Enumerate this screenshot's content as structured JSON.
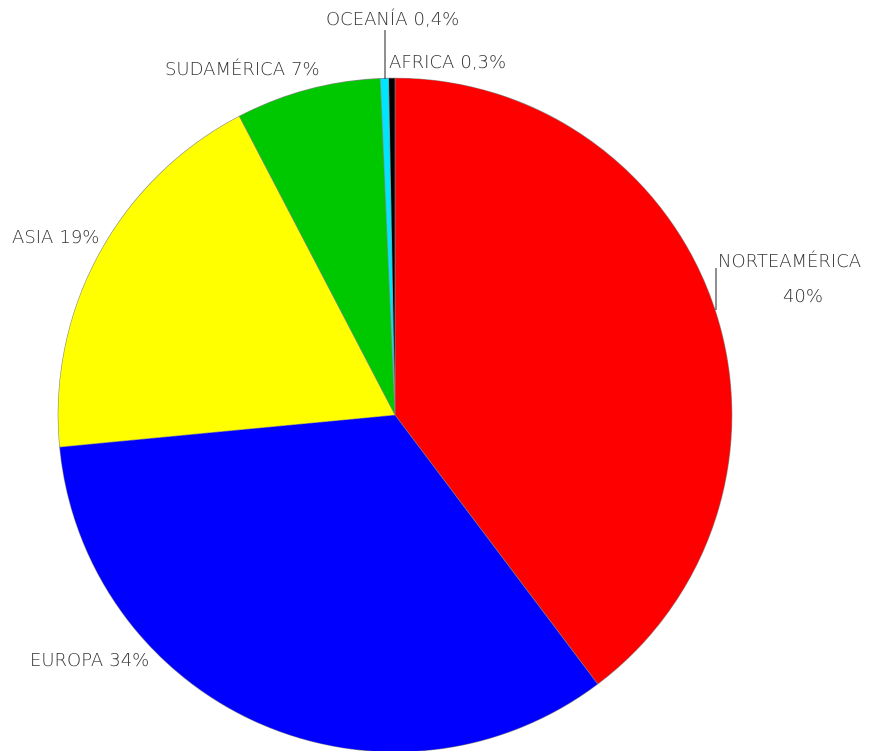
{
  "chart_data": {
    "type": "pie",
    "categories": [
      "NORTEAMÉRICA",
      "EUROPA",
      "ASIA",
      "SUDAMÉRICA",
      "OCEANÍA",
      "AFRICA"
    ],
    "values": [
      40,
      34,
      19,
      7,
      0.4,
      0.3
    ],
    "value_labels": [
      "40%",
      "34%",
      "19%",
      "7%",
      "0,4%",
      "0,3%"
    ],
    "colors": [
      "#ff0000",
      "#0000ff",
      "#ffff00",
      "#00c800",
      "#00e5ff",
      "#000000"
    ]
  }
}
